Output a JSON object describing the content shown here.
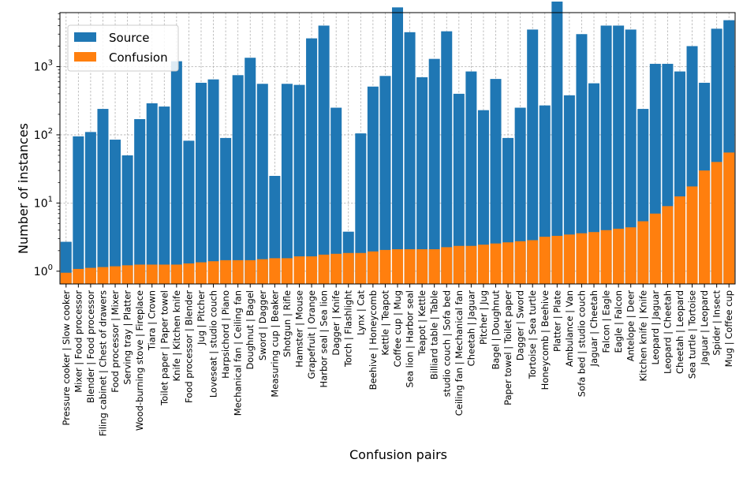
{
  "chart_data": {
    "type": "bar",
    "xlabel": "Confusion pairs",
    "ylabel": "Number of instances",
    "y_scale": "log",
    "ylim": [
      0.65,
      6200
    ],
    "y_ticks": [
      {
        "value": 1,
        "base": "10",
        "exp": "0"
      },
      {
        "value": 10,
        "base": "10",
        "exp": "1"
      },
      {
        "value": 100,
        "base": "10",
        "exp": "2"
      },
      {
        "value": 1000,
        "base": "10",
        "exp": "3"
      }
    ],
    "grid": true,
    "legend_position": "top-left",
    "categories": [
      "Pressure cooker | Slow cooker",
      "Mixer | Food processor",
      "Blender | Food processor",
      "Filing cabinet | Chest of drawers",
      "Food processor | Mixer",
      "Serving tray | Platter",
      "Wood-burning stove | Fireplace",
      "Tiara | Crown",
      "Toilet paper | Paper towel",
      "Knife | Kitchen knife",
      "Food processor | Blender",
      "Jug | Pitcher",
      "Loveseat | studio couch",
      "Harpsichord | Piano",
      "Mechanical fan | Ceiling fan",
      "Doughnut | Bagel",
      "Sword | Dagger",
      "Measuring cup | Beaker",
      "Shotgun | Rifle",
      "Hamster | Mouse",
      "Grapefruit | Orange",
      "Harbor seal | Sea lion",
      "Dagger | Knife",
      "Torch | Flashlight",
      "Lynx | Cat",
      "Beehive | Honeycomb",
      "Kettle | Teapot",
      "Coffee cup | Mug",
      "Sea lion | Harbor seal",
      "Teapot | Kettle",
      "Billiard table | Table",
      "studio couch | Sofa bed",
      "Ceiling fan | Mechanical fan",
      "Cheetah | Jaguar",
      "Pitcher | Jug",
      "Bagel | Doughnut",
      "Paper towel | Toilet paper",
      "Dagger | Sword",
      "Tortoise | Sea turtle",
      "Honeycomb | Beehive",
      "Platter | Plate",
      "Ambulance | Van",
      "Sofa bed | studio couch",
      "Jaguar | Cheetah",
      "Falcon | Eagle",
      "Eagle | Falcon",
      "Antelope | Deer",
      "Kitchen knife | Knife",
      "Leopard | Jaguar",
      "Leopard | Cheetah",
      "Cheetah | Leopard",
      "Sea turtle | Tortoise",
      "Jaguar | Leopard",
      "Spider | Insect",
      "Mug | Coffee cup"
    ],
    "series": [
      {
        "name": "Source",
        "color": "#1f77b4",
        "values": [
          2.7,
          95,
          110,
          240,
          85,
          50,
          170,
          290,
          260,
          1200,
          82,
          580,
          650,
          90,
          750,
          1350,
          560,
          25,
          560,
          540,
          2600,
          4000,
          250,
          3.8,
          105,
          510,
          730,
          7400,
          3200,
          700,
          1300,
          3300,
          400,
          850,
          230,
          660,
          90,
          250,
          3500,
          270,
          9000,
          380,
          3000,
          570,
          4000,
          4000,
          3500,
          240,
          1100,
          1100,
          850,
          2000,
          580,
          3600,
          4800
        ]
      },
      {
        "name": "Confusion",
        "color": "#ff7f0e",
        "values": [
          0.95,
          1.08,
          1.12,
          1.15,
          1.18,
          1.22,
          1.25,
          1.25,
          1.25,
          1.25,
          1.3,
          1.35,
          1.4,
          1.45,
          1.45,
          1.45,
          1.5,
          1.55,
          1.55,
          1.65,
          1.65,
          1.75,
          1.8,
          1.85,
          1.85,
          1.95,
          2.05,
          2.1,
          2.1,
          2.1,
          2.1,
          2.25,
          2.35,
          2.35,
          2.45,
          2.55,
          2.65,
          2.75,
          2.85,
          3.2,
          3.3,
          3.45,
          3.6,
          3.75,
          4.0,
          4.2,
          4.4,
          5.4,
          7.0,
          9.0,
          12.5,
          17.5,
          30,
          40,
          55
        ]
      }
    ]
  }
}
